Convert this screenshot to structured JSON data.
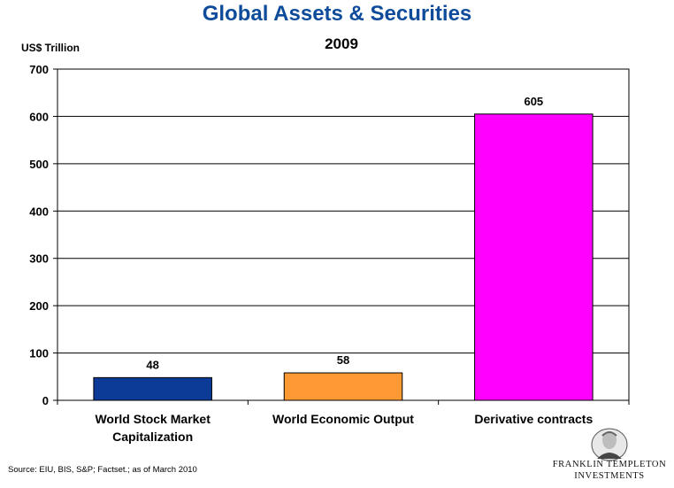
{
  "chart_data": {
    "type": "bar",
    "title": "Global Assets & Securities",
    "subtitle": "2009",
    "ylabel": "US$ Trillion",
    "ylim": [
      0,
      700
    ],
    "yticks": [
      0,
      100,
      200,
      300,
      400,
      500,
      600,
      700
    ],
    "grid": true,
    "categories": [
      [
        "World Stock Market",
        "Capitalization"
      ],
      [
        "World Economic Output"
      ],
      [
        "Derivative contracts"
      ]
    ],
    "values": [
      48,
      58,
      605
    ],
    "data_labels": [
      "48",
      "58",
      "605"
    ],
    "colors": [
      "#0b3b96",
      "#ff9933",
      "#ff00ff"
    ]
  },
  "footer": {
    "source": "Source: EIU, BIS, S&P; Factset.; as of March 2010"
  },
  "logo": {
    "line1": "FRANKLIN TEMPLETON",
    "line2": "INVESTMENTS"
  }
}
